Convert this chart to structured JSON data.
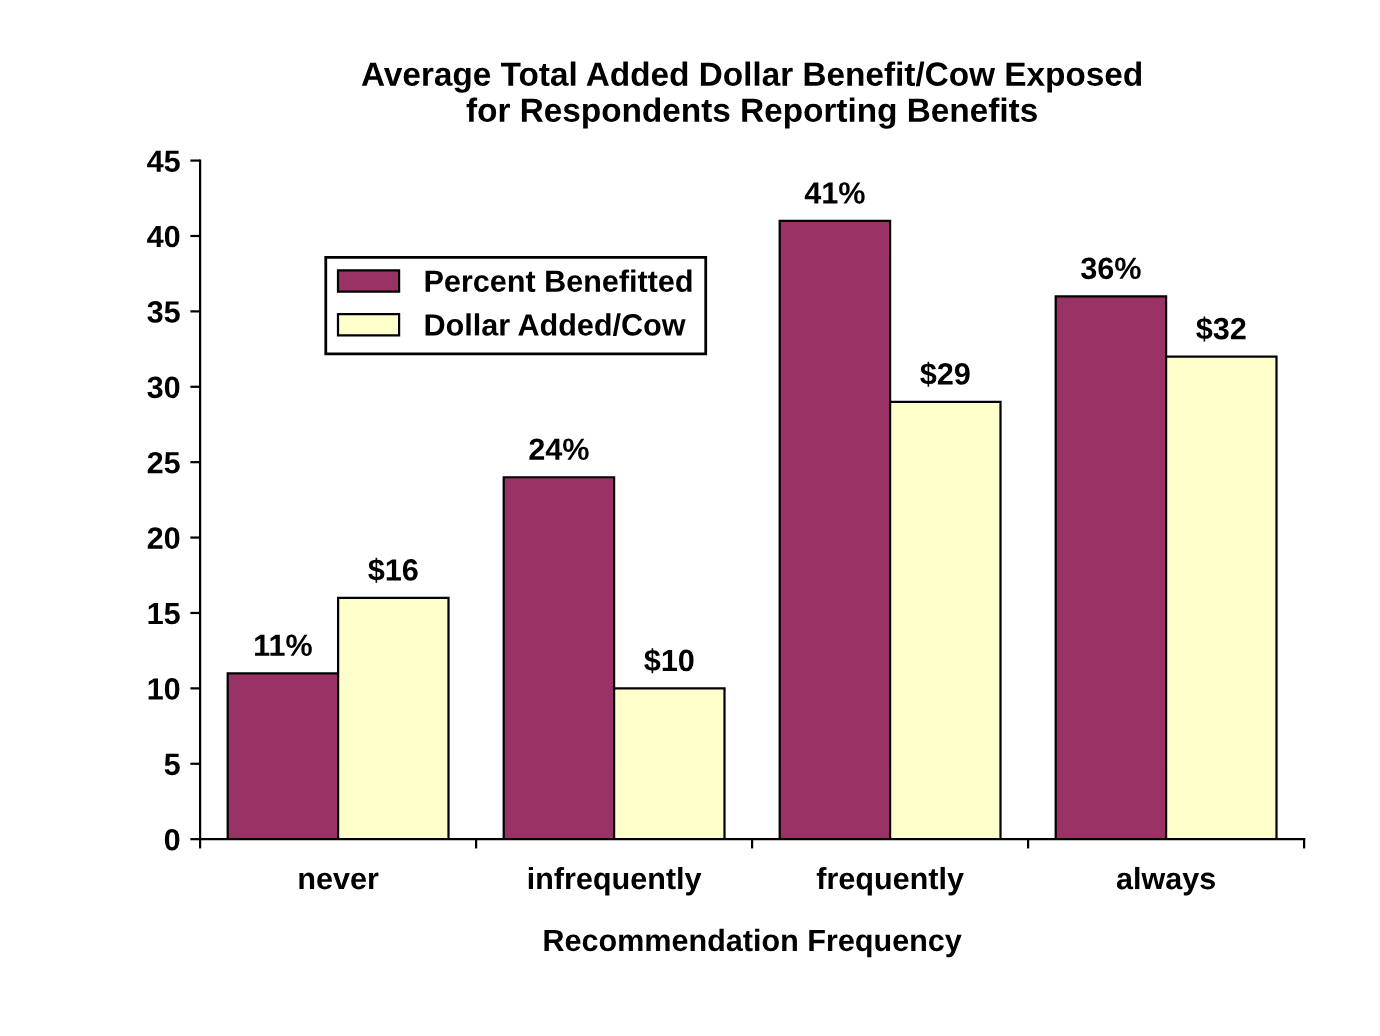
{
  "chart_data": {
    "type": "bar",
    "title": "Average Total Added Dollar Benefit/Cow Exposed\nfor Respondents Reporting Benefits",
    "xlabel": "Recommendation Frequency",
    "categories": [
      "never",
      "infrequently",
      "frequently",
      "always"
    ],
    "series": [
      {
        "name": "Percent Benefitted",
        "color": "#993366",
        "values": [
          11,
          24,
          41,
          36
        ],
        "value_labels": [
          "11%",
          "24%",
          "41%",
          "36%"
        ]
      },
      {
        "name": "Dollar Added/Cow",
        "color": "#ffffcc",
        "values": [
          16,
          10,
          29,
          32
        ],
        "value_labels": [
          "$16",
          "$10",
          "$29",
          "$32"
        ]
      }
    ],
    "ylim": [
      0,
      45
    ],
    "yticks": [
      0,
      5,
      10,
      15,
      20,
      25,
      30,
      35,
      40,
      45
    ],
    "legend": "top left"
  }
}
